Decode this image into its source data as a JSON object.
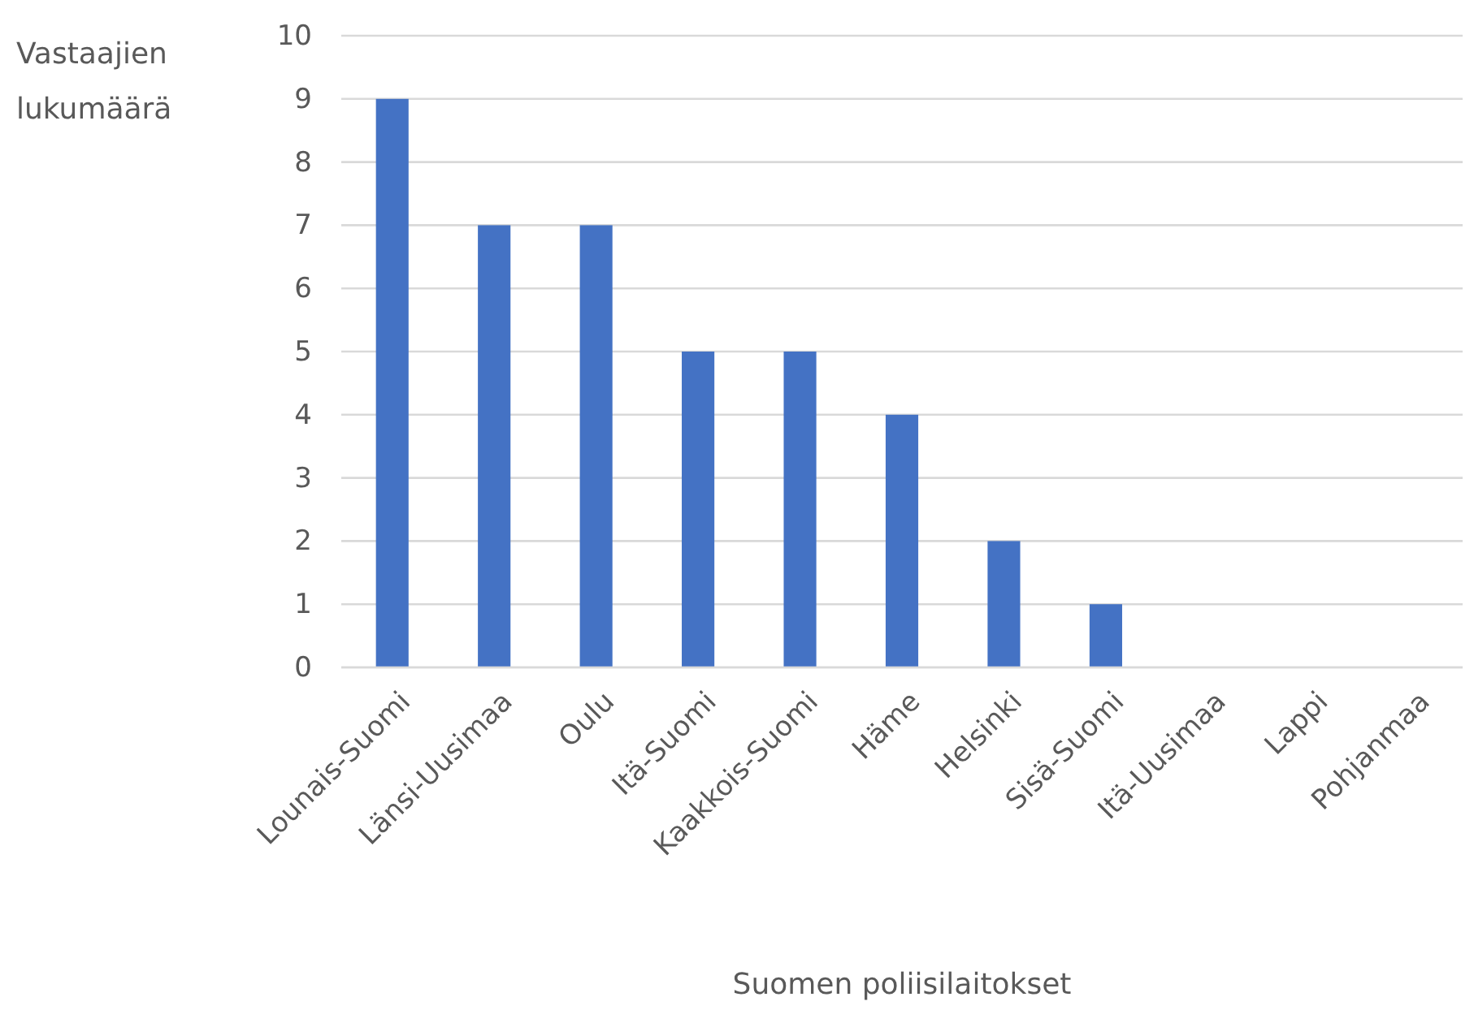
{
  "chart_data": {
    "type": "bar",
    "xlabel": "Suomen poliisilaitokset",
    "ylabel": "Vastaajien lukumäärä",
    "categories": [
      "Lounais-Suomi",
      "Länsi-Uusimaa",
      "Oulu",
      "Itä-Suomi",
      "Kaakkois-Suomi",
      "Häme",
      "Helsinki",
      "Sisä-Suomi",
      "Itä-Uusimaa",
      "Lappi",
      "Pohjanmaa"
    ],
    "values": [
      9,
      7,
      7,
      5,
      5,
      4,
      2,
      1,
      0,
      0,
      0
    ],
    "color": "#4472c4",
    "ylim": [
      0,
      10
    ],
    "yticks": [
      0,
      1,
      2,
      3,
      4,
      5,
      6,
      7,
      8,
      9,
      10
    ],
    "grid": "y"
  }
}
